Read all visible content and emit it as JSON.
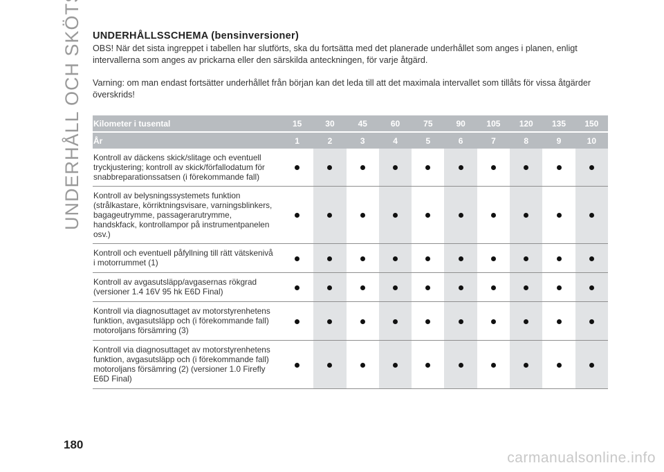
{
  "side_title": "UNDERHÅLL OCH SKÖTSEL",
  "page_number": "180",
  "watermark": "carmanualsonline.info",
  "heading": "UNDERHÅLLSSCHEMA (bensinversioner)",
  "paragraph1": "OBS! När det sista ingreppet i tabellen har slutförts, ska du fortsätta med det planerade underhållet som anges i planen, enligt intervallerna som anges av prickarna eller den särskilda anteckningen, för varje åtgärd.",
  "paragraph2": "Varning: om man endast fortsätter underhållet från början kan det leda till att det maximala intervallet som tillåts för vissa åtgärder överskrids!",
  "table": {
    "km_label": "Kilometer i tusental",
    "km_values": [
      "15",
      "30",
      "45",
      "60",
      "75",
      "90",
      "105",
      "120",
      "135",
      "150"
    ],
    "year_label": "År",
    "year_values": [
      "1",
      "2",
      "3",
      "4",
      "5",
      "6",
      "7",
      "8",
      "9",
      "10"
    ],
    "rows": [
      {
        "description": "Kontroll av däckens skick/slitage och eventuell tryckjustering; kontroll av skick/förfallodatum för snabbreparationssatsen (i förekommande fall)"
      },
      {
        "description": "Kontroll av belysningssystemets funktion (strålkastare, körriktningsvisare, varningsblinkers, bagageutrymme, passagerarutrymme, handskfack, kontrollampor på instrumentpanelen osv.)"
      },
      {
        "description": "Kontroll och eventuell påfyllning till rätt vätskenivå i motorrummet (1)"
      },
      {
        "description": "Kontroll av avgasutsläpp/avgasernas rökgrad (versioner 1.4 16V 95 hk E6D Final)"
      },
      {
        "description": "Kontroll via diagnosuttaget av motorstyrenhetens funktion, avgasutsläpp och (i förekommande fall) motoroljans försämring (3)"
      },
      {
        "description": "Kontroll via diagnosuttaget av motorstyrenhetens funktion, avgasutsläpp och (i förekommande fall) motoroljans försämring (2) (versioner 1.0 Firefly E6D Final)"
      }
    ],
    "dot_symbol": "dot-icon"
  }
}
